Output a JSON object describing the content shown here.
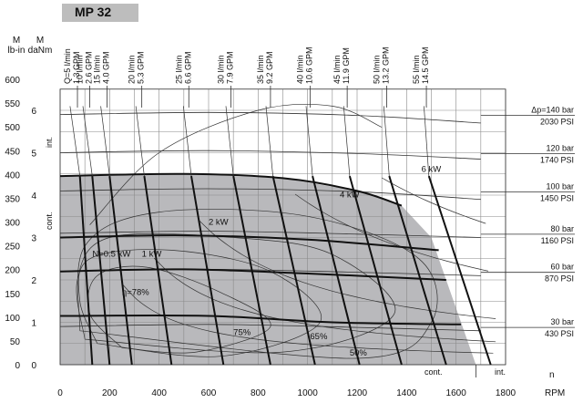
{
  "title": "MP 32",
  "colors": {
    "shade": "#b9b9bc",
    "grid": "#8a8a8a",
    "thick": "#111111",
    "thin": "#333333"
  },
  "chart_data": {
    "type": "line",
    "title": "MP 32",
    "xlabel": "n",
    "xunit": "RPM",
    "xlim": [
      0,
      1800
    ],
    "xticks": [
      0,
      200,
      400,
      600,
      800,
      1000,
      1200,
      1400,
      1600,
      1800
    ],
    "y_axes": [
      {
        "label": "M",
        "unit": "lb-in",
        "ticks": [
          0,
          50,
          100,
          150,
          200,
          250,
          300,
          350,
          400,
          450,
          500,
          550,
          600
        ]
      },
      {
        "label": "M",
        "unit": "daNm",
        "ticks": [
          0,
          1,
          2,
          3,
          4,
          5,
          6
        ],
        "ylim": [
          0,
          6.8
        ]
      }
    ],
    "flow_labels": [
      {
        "lmin": "Q=5 l/min",
        "gpm": "1.3 GPM",
        "rpm": 70
      },
      {
        "lmin": "10 l/min",
        "gpm": "2.6 GPM",
        "rpm": 120
      },
      {
        "lmin": "15 l/min",
        "gpm": "4.0 GPM",
        "rpm": 190
      },
      {
        "lmin": "20 l/min",
        "gpm": "5.3 GPM",
        "rpm": 330
      },
      {
        "lmin": "25 l/min",
        "gpm": "6.6 GPM",
        "rpm": 520
      },
      {
        "lmin": "30 l/min",
        "gpm": "7.9 GPM",
        "rpm": 690
      },
      {
        "lmin": "35 l/min",
        "gpm": "9.2 GPM",
        "rpm": 850
      },
      {
        "lmin": "40 l/min",
        "gpm": "10.6 GPM",
        "rpm": 1010
      },
      {
        "lmin": "45 l/min",
        "gpm": "11.9 GPM",
        "rpm": 1160
      },
      {
        "lmin": "50 l/min",
        "gpm": "13.2 GPM",
        "rpm": 1320
      },
      {
        "lmin": "55 l/min",
        "gpm": "14.5 GPM",
        "rpm": 1480
      }
    ],
    "pressure_labels": [
      {
        "bar": "Δp=140 bar",
        "psi": "2030 PSI",
        "torque_daNm": 5.9
      },
      {
        "bar": "120 bar",
        "psi": "1740 PSI",
        "torque_daNm": 5.0
      },
      {
        "bar": "100 bar",
        "psi": "1450 PSI",
        "torque_daNm": 4.1
      },
      {
        "bar": "80 bar",
        "psi": "1160 PSI",
        "torque_daNm": 3.1
      },
      {
        "bar": "60 bar",
        "psi": "870 PSI",
        "torque_daNm": 2.2
      },
      {
        "bar": "30 bar",
        "psi": "430 PSI",
        "torque_daNm": 0.9
      }
    ],
    "power_labels": [
      "N=0.5 kW",
      "1 kW",
      "2 kW",
      "4 kW",
      "6 kW"
    ],
    "efficiency_labels": [
      "η=78%",
      "75%",
      "65%",
      "50%"
    ],
    "regions": {
      "cont": "cont.",
      "int": "int."
    }
  }
}
